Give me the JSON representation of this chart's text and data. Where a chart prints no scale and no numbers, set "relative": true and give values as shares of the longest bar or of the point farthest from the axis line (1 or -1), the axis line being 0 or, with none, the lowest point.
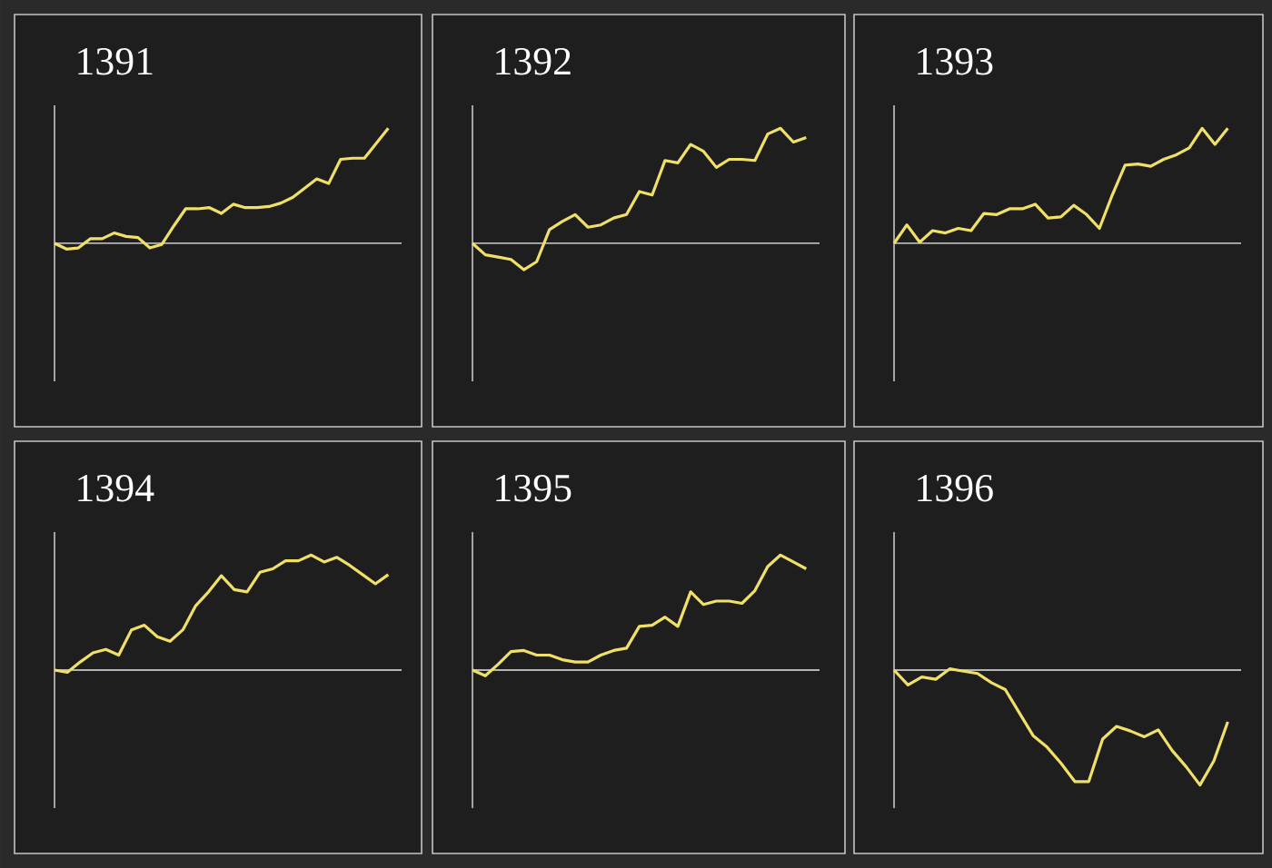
{
  "chart_data": [
    {
      "type": "line",
      "title": "1391",
      "relative": true,
      "tick_labels": false,
      "categories": [
        null,
        null,
        null,
        null,
        null,
        null,
        null,
        null,
        null,
        null,
        null,
        null,
        null,
        null,
        null,
        null,
        null,
        null,
        null,
        null,
        null,
        null,
        null,
        null,
        null,
        null,
        null,
        null,
        null
      ],
      "series": [
        {
          "color": "#f0e068",
          "values": [
            0,
            -0.05,
            -0.04,
            0.04,
            0.04,
            0.09,
            0.06,
            0.05,
            -0.04,
            -0.01,
            0.15,
            0.3,
            0.3,
            0.31,
            0.26,
            0.34,
            0.31,
            0.31,
            0.32,
            0.35,
            0.4,
            0.48,
            0.56,
            0.52,
            0.73,
            0.74,
            0.74,
            0.87,
            1
          ]
        }
      ]
    },
    {
      "type": "line",
      "title": "1392",
      "relative": true,
      "tick_labels": false,
      "categories": [
        null,
        null,
        null,
        null,
        null,
        null,
        null,
        null,
        null,
        null,
        null,
        null,
        null,
        null,
        null,
        null,
        null,
        null,
        null,
        null,
        null,
        null,
        null,
        null,
        null,
        null,
        null
      ],
      "series": [
        {
          "color": "#f0e068",
          "values": [
            0,
            -0.1,
            -0.12,
            -0.14,
            -0.23,
            -0.16,
            0.12,
            0.19,
            0.25,
            0.14,
            0.16,
            0.22,
            0.25,
            0.45,
            0.42,
            0.72,
            0.7,
            0.86,
            0.8,
            0.66,
            0.73,
            0.73,
            0.72,
            0.95,
            1,
            0.88,
            0.92
          ]
        }
      ]
    },
    {
      "type": "line",
      "title": "1393",
      "relative": true,
      "tick_labels": false,
      "categories": [
        null,
        null,
        null,
        null,
        null,
        null,
        null,
        null,
        null,
        null,
        null,
        null,
        null,
        null,
        null,
        null,
        null,
        null,
        null,
        null,
        null,
        null,
        null,
        null,
        null,
        null,
        null
      ],
      "series": [
        {
          "color": "#f0e068",
          "values": [
            0,
            0.16,
            0.01,
            0.11,
            0.09,
            0.13,
            0.11,
            0.26,
            0.25,
            0.3,
            0.3,
            0.34,
            0.22,
            0.23,
            0.33,
            0.25,
            0.13,
            0.42,
            0.68,
            0.69,
            0.67,
            0.73,
            0.77,
            0.83,
            1,
            0.86,
            1
          ]
        }
      ]
    },
    {
      "type": "line",
      "title": "1394",
      "relative": true,
      "tick_labels": false,
      "categories": [
        null,
        null,
        null,
        null,
        null,
        null,
        null,
        null,
        null,
        null,
        null,
        null,
        null,
        null,
        null,
        null,
        null,
        null,
        null,
        null,
        null,
        null,
        null,
        null,
        null,
        null,
        null
      ],
      "series": [
        {
          "color": "#f0e068",
          "values": [
            0,
            -0.02,
            0.07,
            0.15,
            0.18,
            0.13,
            0.35,
            0.39,
            0.29,
            0.25,
            0.35,
            0.56,
            0.68,
            0.82,
            0.7,
            0.68,
            0.85,
            0.88,
            0.95,
            0.95,
            1,
            0.94,
            0.98,
            0.91,
            0.83,
            0.75,
            0.83
          ]
        }
      ]
    },
    {
      "type": "line",
      "title": "1395",
      "relative": true,
      "tick_labels": false,
      "categories": [
        null,
        null,
        null,
        null,
        null,
        null,
        null,
        null,
        null,
        null,
        null,
        null,
        null,
        null,
        null,
        null,
        null,
        null,
        null,
        null,
        null,
        null,
        null,
        null,
        null,
        null,
        null
      ],
      "series": [
        {
          "color": "#f0e068",
          "values": [
            0,
            -0.05,
            0.05,
            0.16,
            0.17,
            0.13,
            0.13,
            0.09,
            0.07,
            0.07,
            0.13,
            0.17,
            0.19,
            0.38,
            0.39,
            0.46,
            0.38,
            0.68,
            0.57,
            0.6,
            0.6,
            0.58,
            0.69,
            0.9,
            1,
            0.94,
            0.88
          ]
        }
      ]
    },
    {
      "type": "line",
      "title": "1396",
      "relative": true,
      "tick_labels": false,
      "categories": [
        null,
        null,
        null,
        null,
        null,
        null,
        null,
        null,
        null,
        null,
        null,
        null,
        null,
        null,
        null,
        null,
        null,
        null,
        null,
        null,
        null,
        null,
        null,
        null,
        null
      ],
      "series": [
        {
          "color": "#f0e068",
          "values": [
            0,
            -0.13,
            -0.06,
            -0.08,
            0.01,
            -0.01,
            -0.03,
            -0.11,
            -0.17,
            -0.37,
            -0.57,
            -0.67,
            -0.81,
            -0.97,
            -0.97,
            -0.6,
            -0.49,
            -0.53,
            -0.58,
            -0.52,
            -0.7,
            -0.84,
            -1,
            -0.79,
            -0.45
          ]
        }
      ]
    }
  ]
}
